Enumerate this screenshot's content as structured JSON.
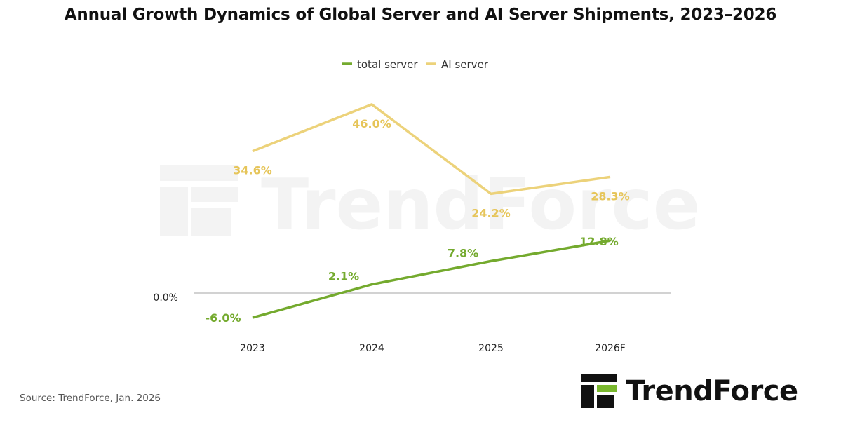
{
  "title": "Annual Growth Dynamics of Global Server and AI Server Shipments, 2023–2026",
  "source": "Source: TrendForce, Jan. 2026",
  "brand": {
    "name": "TrendForce",
    "watermark": "TrendForce"
  },
  "colors": {
    "total_server": "#74aa2e",
    "ai_server": "#ecd27a",
    "ai_label": "#e6c55a",
    "zero_line": "#b8b8b8",
    "logo_dark": "#111111",
    "logo_green": "#7ab82e"
  },
  "chart_data": {
    "type": "line",
    "categories": [
      "2023",
      "2024",
      "2025",
      "2026F"
    ],
    "series": [
      {
        "name": "total server",
        "values": [
          -6.0,
          2.1,
          7.8,
          12.8
        ],
        "labels": [
          "-6.0%",
          "2.1%",
          "7.8%",
          "12.8%"
        ]
      },
      {
        "name": "AI server",
        "values": [
          34.6,
          46.0,
          24.2,
          28.3
        ],
        "labels": [
          "34.6%",
          "46.0%",
          "24.2%",
          "28.3%"
        ]
      }
    ],
    "y_axis_label": "0.0%",
    "legend_position": "top-center",
    "grid": false
  }
}
